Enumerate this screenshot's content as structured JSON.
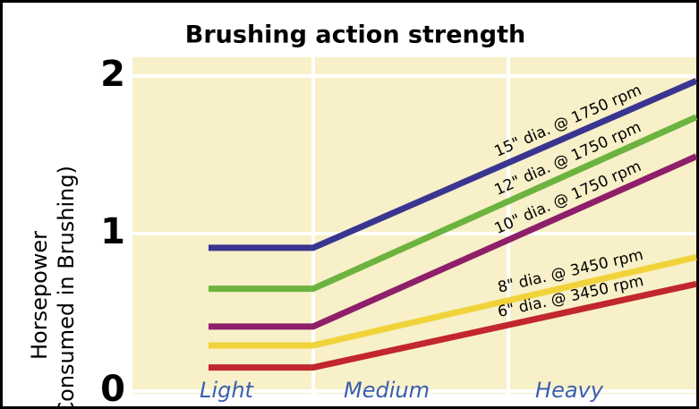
{
  "chart_data": {
    "type": "line",
    "title": "Brushing action strength",
    "y_label": [
      "Horsepower",
      "(Consumed in Brushing)"
    ],
    "categories": [
      "Light",
      "Medium",
      "Heavy"
    ],
    "series": [
      {
        "name": "15\" dia. @ 1750 rpm",
        "color": "#3a3591",
        "values": [
          0.91,
          0.91,
          1.97
        ]
      },
      {
        "name": "12\" dia. @ 1750 rpm",
        "color": "#6cb33f",
        "values": [
          0.65,
          0.65,
          1.74
        ]
      },
      {
        "name": "10\" dia. @ 1750 rpm",
        "color": "#8e1f6a",
        "values": [
          0.41,
          0.41,
          1.49
        ]
      },
      {
        "name": "8\" dia. @ 3450 rpm",
        "color": "#f0d33a",
        "values": [
          0.29,
          0.29,
          0.85
        ]
      },
      {
        "name": "6\" dia. @ 3450 rpm",
        "color": "#c1272d",
        "values": [
          0.15,
          0.15,
          0.68
        ]
      }
    ],
    "ylim": [
      0,
      2.1
    ],
    "yticks": [
      0,
      1,
      2
    ],
    "grid": true
  }
}
